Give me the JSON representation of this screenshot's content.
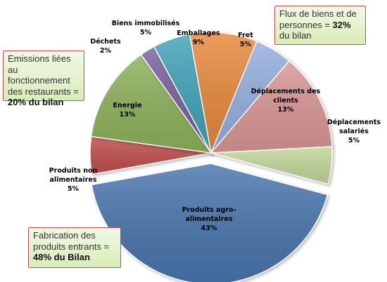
{
  "colors": {
    "callout_border": "#c0504d",
    "callout_fill": "#e4f1cf",
    "callout_highlight": "#f0b050"
  },
  "chart_data": {
    "type": "pie",
    "title": "",
    "slices": [
      {
        "label_lines": [
          "Produits agro-",
          "alimentaires"
        ],
        "value": 43,
        "value_text": "43%",
        "color": "#4a74ad",
        "exploded": true
      },
      {
        "label_lines": [
          "Produits non",
          "alimentaires"
        ],
        "value": 5,
        "value_text": "5%",
        "color": "#c0504d",
        "exploded": false
      },
      {
        "label_lines": [
          "Energie"
        ],
        "value": 13,
        "value_text": "13%",
        "color": "#8db15a",
        "exploded": false
      },
      {
        "label_lines": [
          "Déchets"
        ],
        "value": 2,
        "value_text": "2%",
        "color": "#7760a0",
        "exploded": false
      },
      {
        "label_lines": [
          "Biens immobilisés"
        ],
        "value": 5,
        "value_text": "5%",
        "color": "#3fa2b8",
        "exploded": false
      },
      {
        "label_lines": [
          "Emballages"
        ],
        "value": 9,
        "value_text": "9%",
        "color": "#e8893a",
        "exploded": false
      },
      {
        "label_lines": [
          "Fret"
        ],
        "value": 5,
        "value_text": "5%",
        "color": "#94aede",
        "exploded": false
      },
      {
        "label_lines": [
          "Déplacements des",
          "clients"
        ],
        "value": 13,
        "value_text": "13%",
        "color": "#d99695",
        "exploded": false
      },
      {
        "label_lines": [
          "Déplacements",
          "salariés"
        ],
        "value": 5,
        "value_text": "5%",
        "color": "#c3d69b",
        "exploded": false
      }
    ],
    "annotations": [
      {
        "id": "emissions",
        "text": "Emissions liées au fonctionnement des restaurants =",
        "emphasis": "20% du bilan"
      },
      {
        "id": "fabrication",
        "text": "Fabrication des produits entrants =",
        "emphasis": "48% du Bilan"
      },
      {
        "id": "flux",
        "text": "Flux de biens et de personnes =",
        "emphasis": "32%",
        "suffix": "du bilan"
      }
    ]
  }
}
